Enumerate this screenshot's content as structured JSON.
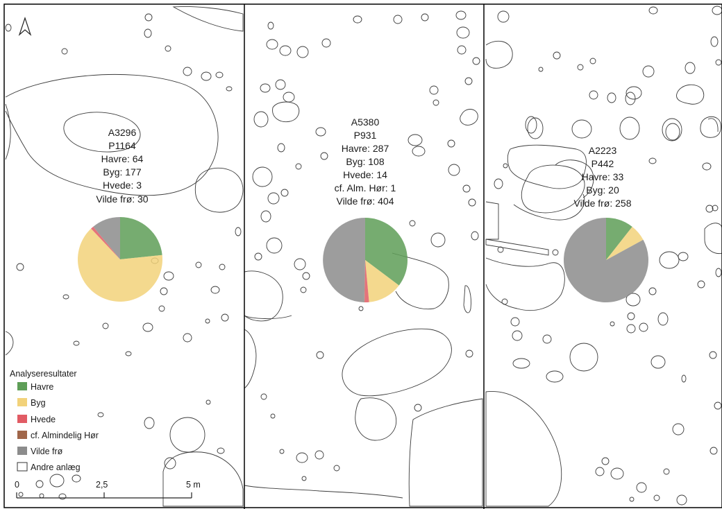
{
  "colors": {
    "havre": "#5e9e57",
    "byg": "#f2d27a",
    "hvede": "#e15b64",
    "hor": "#a0664a",
    "vilde": "#8c8c8c",
    "frame": "#000000"
  },
  "north_arrow": "north-arrow-icon",
  "samples": [
    {
      "lines": [
        "A3296",
        "P1164",
        "Havre: 64",
        "Byg: 177",
        "Hvede: 3",
        "Vilde frø: 30"
      ],
      "counts": {
        "havre": 64,
        "byg": 177,
        "hvede": 3,
        "hor": 0,
        "vilde": 30
      }
    },
    {
      "lines": [
        "A5380",
        "P931",
        "Havre: 287",
        "Byg: 108",
        "Hvede: 14",
        "cf. Alm. Hør: 1",
        "Vilde frø: 404"
      ],
      "counts": {
        "havre": 287,
        "byg": 108,
        "hvede": 14,
        "hor": 1,
        "vilde": 404
      }
    },
    {
      "lines": [
        "A2223",
        "P442",
        "Havre: 33",
        "Byg: 20",
        "Vilde frø: 258"
      ],
      "counts": {
        "havre": 33,
        "byg": 20,
        "hvede": 0,
        "hor": 0,
        "vilde": 258
      }
    }
  ],
  "legend": {
    "title": "Analyseresultater",
    "items": [
      {
        "key": "havre",
        "label": "Havre"
      },
      {
        "key": "byg",
        "label": "Byg"
      },
      {
        "key": "hvede",
        "label": "Hvede"
      },
      {
        "key": "hor",
        "label": "cf. Almindelig Hør"
      },
      {
        "key": "vilde",
        "label": "Vilde frø"
      },
      {
        "key": "andre",
        "label": "Andre anlæg"
      }
    ]
  },
  "scalebar": {
    "labels": [
      "0",
      "2,5",
      "5 m"
    ]
  }
}
